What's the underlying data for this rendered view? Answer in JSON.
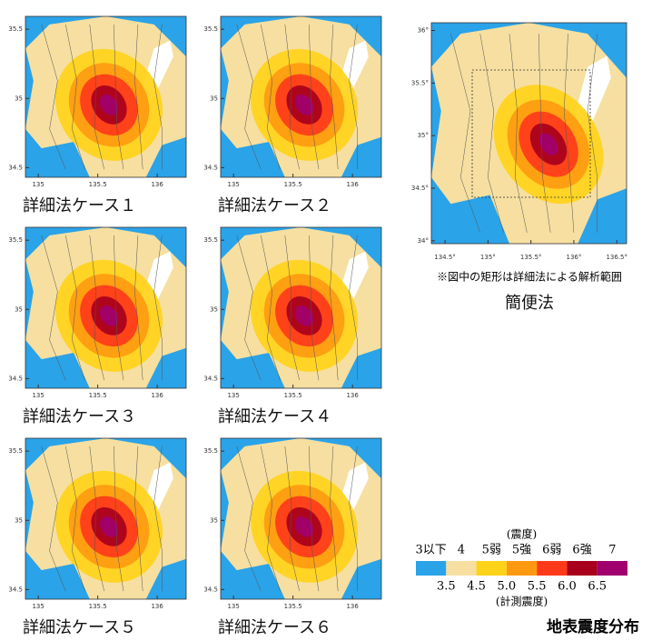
{
  "detailed_maps": [
    {
      "caption": "詳細法ケース１"
    },
    {
      "caption": "詳細法ケース２"
    },
    {
      "caption": "詳細法ケース３"
    },
    {
      "caption": "詳細法ケース４"
    },
    {
      "caption": "詳細法ケース５"
    },
    {
      "caption": "詳細法ケース６"
    }
  ],
  "detailed_axes": {
    "yticks": [
      "35.5",
      "35",
      "34.5"
    ],
    "xticks": [
      "135",
      "135.5",
      "136"
    ]
  },
  "simple_map": {
    "caption": "簡便法",
    "note": "※図中の矩形は詳細法による解析範囲",
    "yticks": [
      "36°",
      "35.5°",
      "35°",
      "34.5°",
      "34°"
    ],
    "xticks": [
      "134.5°",
      "135°",
      "135.5°",
      "136°",
      "136.5°"
    ]
  },
  "legend": {
    "title": "(震度)",
    "intensity_labels": [
      "3以下",
      "4",
      "5弱",
      "5強",
      "6弱",
      "6強",
      "7"
    ],
    "colors": [
      "#2aa3e8",
      "#f6dfa0",
      "#ffd21a",
      "#ff9a10",
      "#ff3a1a",
      "#a8001c",
      "#a0006e"
    ],
    "measured_labels": [
      "3.5",
      "4.5",
      "5.0",
      "5.5",
      "6.0",
      "6.5"
    ],
    "measured_title": "(計測震度)"
  },
  "title": "地表震度分布"
}
